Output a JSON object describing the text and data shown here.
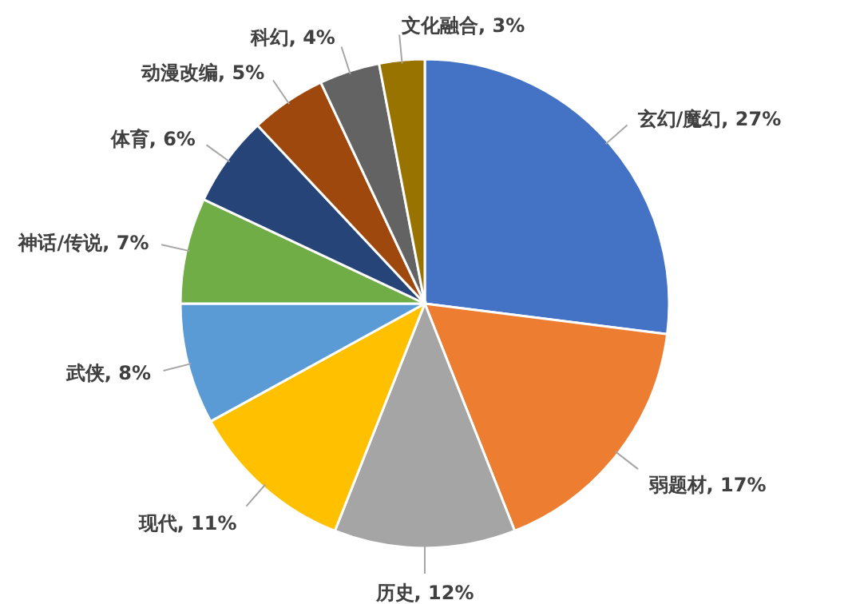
{
  "chart_data": {
    "type": "pie",
    "categories": [
      "玄幻/魔幻",
      "弱题材",
      "历史",
      "现代",
      "武侠",
      "神话/传说",
      "体育",
      "动漫改编",
      "科幻",
      "文化融合"
    ],
    "values": [
      27,
      17,
      12,
      11,
      8,
      7,
      6,
      5,
      4,
      3
    ],
    "value_labels": [
      "27%",
      "17%",
      "12%",
      "11%",
      "8%",
      "7%",
      "6%",
      "5%",
      "4%",
      "3%"
    ],
    "colors": [
      "#4472c4",
      "#ed7d31",
      "#a5a5a5",
      "#ffc000",
      "#5b9bd5",
      "#70ad47",
      "#264478",
      "#9e480e",
      "#636363",
      "#997300"
    ]
  }
}
